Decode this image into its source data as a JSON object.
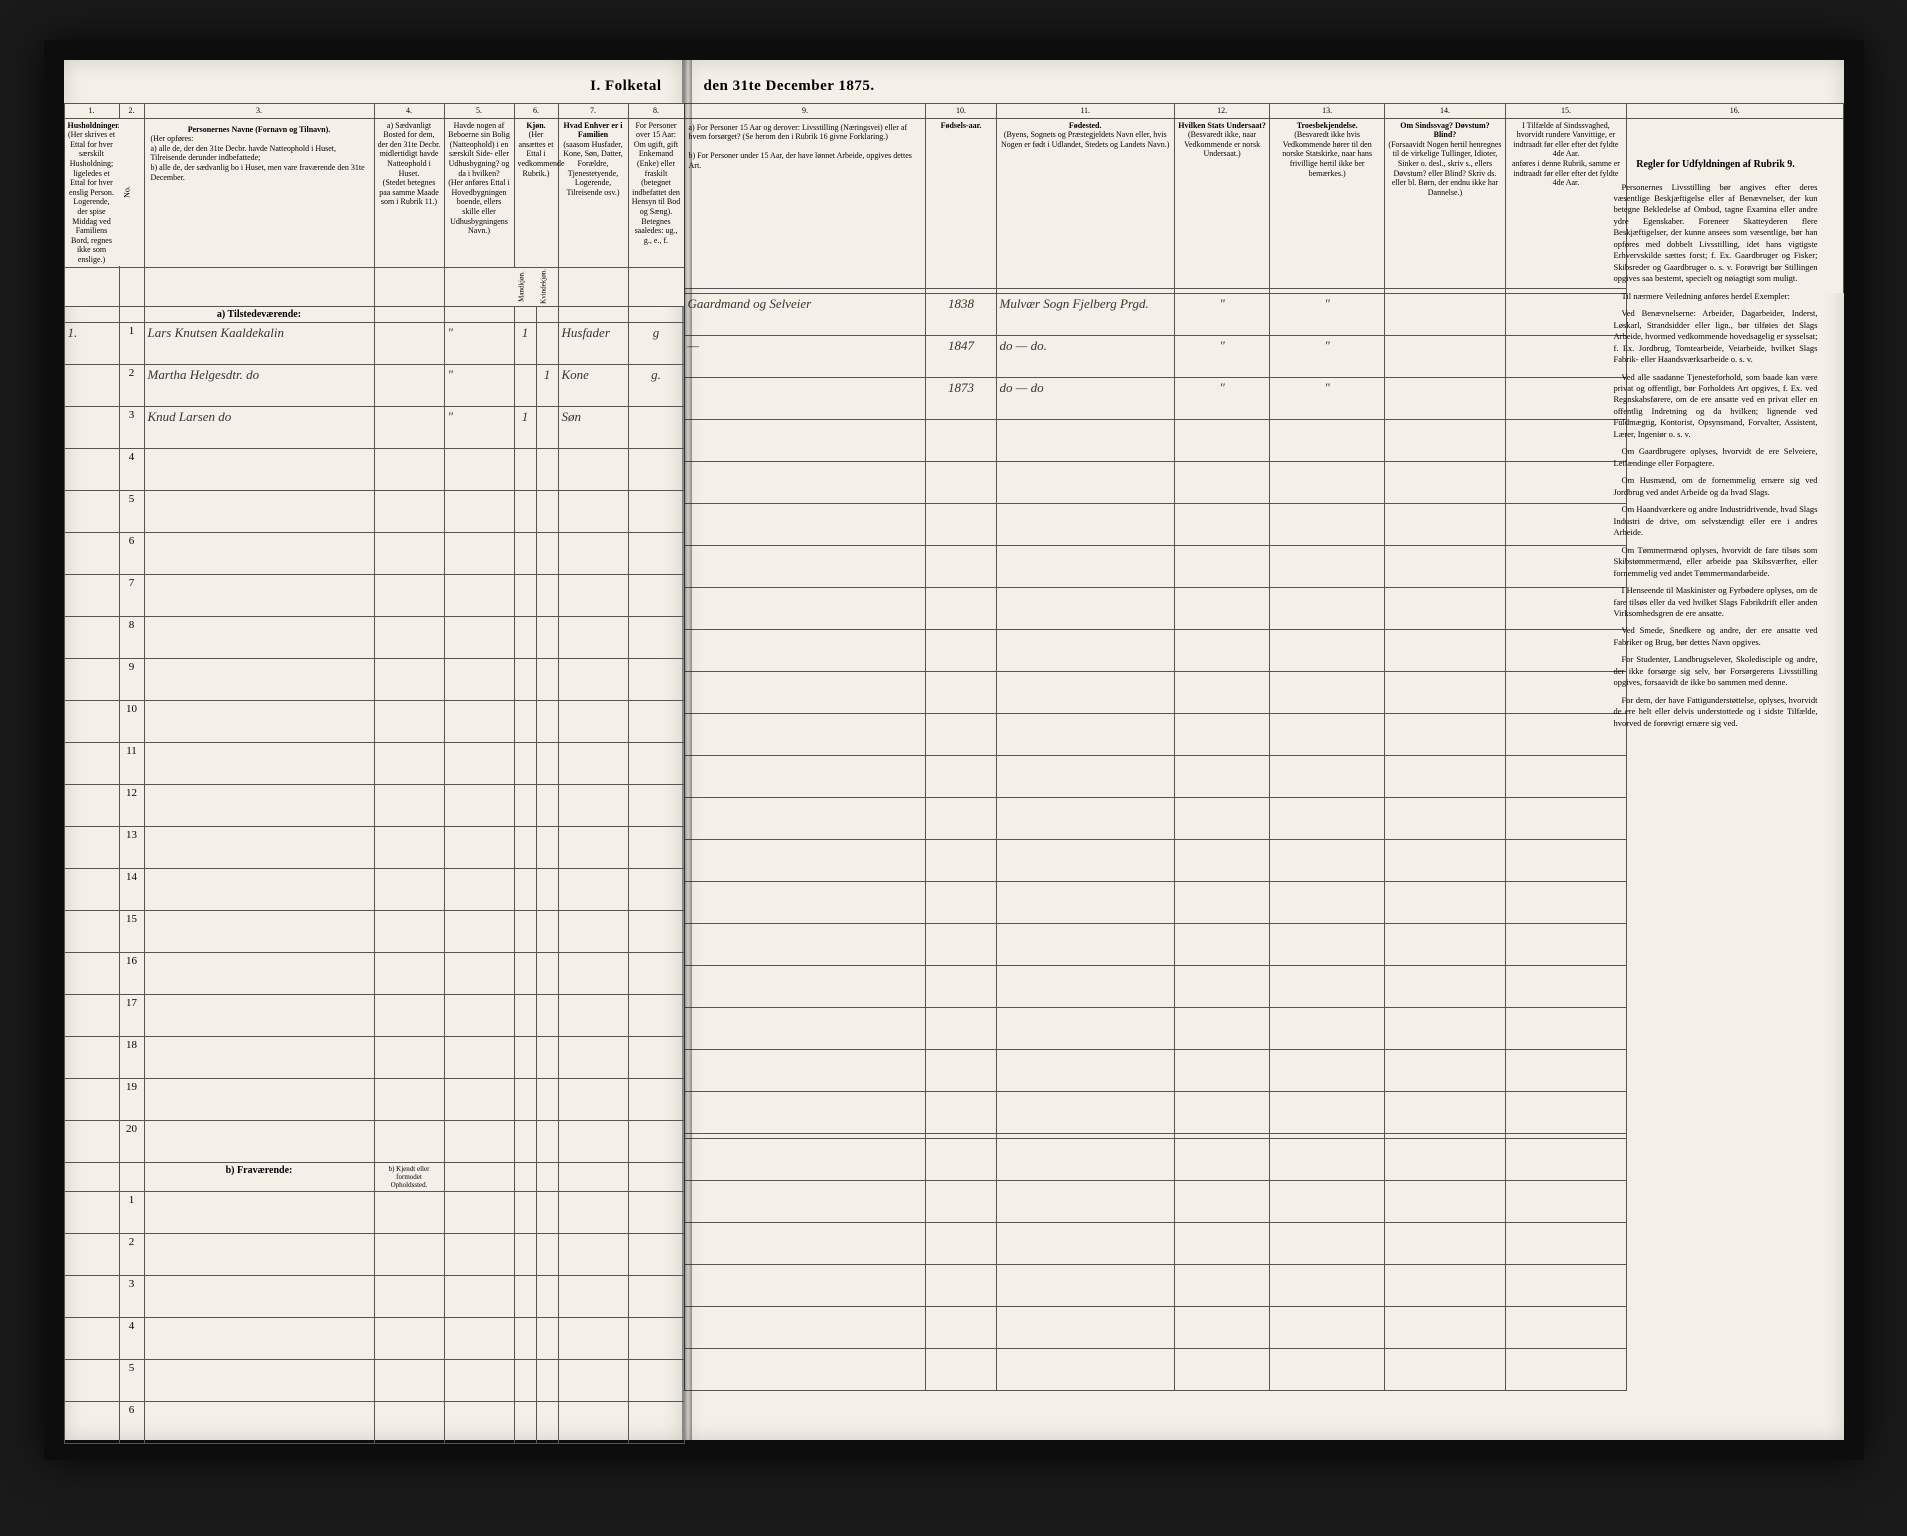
{
  "document": {
    "title_left": "I. Folketal",
    "title_right": "den 31te December 1875.",
    "colors": {
      "page_bg": "#f4f0e8",
      "border": "#555555",
      "ink": "#3a3328",
      "frame": "#1a1a1a"
    }
  },
  "columns_left": {
    "c1": {
      "num": "1.",
      "head": "Husholdninger.",
      "sub": "(Her skrives et Ettal for hver særskilt Husholdning; ligeledes et Ettal for hver enslig Person. Logerende, der spise Middag ved Familiens Bord, regnes ikke som enslige.)"
    },
    "c2": {
      "num": "2.",
      "head": "No."
    },
    "c3": {
      "num": "3.",
      "head": "Personernes Navne (Fornavn og Tilnavn).",
      "sub_a": "(Her opføres:",
      "sub_b": "a) alle de, der den 31te Decbr. havde Natteophold i Huset, Tilreisende derunder indbefattede;",
      "sub_c": "b) alle de, der sædvanlig bo i Huset, men vare fraværende den 31te December."
    },
    "c4": {
      "num": "4.",
      "head": "a) Sædvanligt Bosted for dem, der den 31te Decbr. midlertidigt havde Natteophold i Huset.",
      "sub": "(Stedet betegnes paa samme Maade som i Rubrik 11.)"
    },
    "c5": {
      "num": "5.",
      "head": "Havde nogen af Beboerne sin Bolig (Natteophold) i en særskilt Side- eller Udhusbygning? og da i hvilken?",
      "sub": "(Her anføres Ettal i Hovedbygningen boende, ellers skille eller Udhusbygningens Navn.)"
    },
    "c6": {
      "num": "6.",
      "head": "Kjøn.",
      "sub": "(Her ansættes et Ettal i vedkommende Rubrik.)",
      "m": "Mandkjøn.",
      "k": "Kvindekjøn."
    },
    "c7": {
      "num": "7.",
      "head": "Hvad Enhver er i Familien",
      "sub": "(saasom Husfader, Kone, Søn, Datter, Forældre, Tjenestetyende, Logerende, Tilreisende osv.)"
    },
    "c8": {
      "num": "8.",
      "head": "For Personer over 15 Aar: Om ugift, gift Enkemand (Enke) eller fraskilt (betegnet indbefattet den Hensyn til Bod og Sæng).",
      "sub": "Betegnes saaledes: ug., g., e., f."
    }
  },
  "columns_right": {
    "c9": {
      "num": "9.",
      "head_a": "a) For Personer 15 Aar og derover: Livsstilling (Næringsvei) eller af hvem forsørget? (Se herom den i Rubrik 16 givne Forklaring.)",
      "head_b": "b) For Personer under 15 Aar, der have lønnet Arbeide, opgives dettes Art."
    },
    "c10": {
      "num": "10.",
      "head": "Fødsels-aar."
    },
    "c11": {
      "num": "11.",
      "head": "Fødested.",
      "sub": "(Byens, Sognets og Præstegjeldets Navn eller, hvis Nogen er født i Udlandet, Stedets og Landets Navn.)"
    },
    "c12": {
      "num": "12.",
      "head": "Hvilken Stats Undersaat?",
      "sub": "(Besvaredt ikke, naar Vedkommende er norsk Undersaat.)"
    },
    "c13": {
      "num": "13.",
      "head": "Troesbekjendelse.",
      "sub": "(Besvaredt ikke hvis Vedkommende hører til den norske Statskirke, naar hans frivillige hertil ikke ber bemærkes.)"
    },
    "c14": {
      "num": "14.",
      "head": "Om Sindssvag? Døvstum? Blind?",
      "sub": "(Forsaavidt Nogen hertil henregnes til de virkelige Tullinger, Idioter, Sinker o. desl., skriv s., ellers Døvstum? eller Blind? Skriv ds. eller bl. Børn, der endnu ikke har Dannelse.)"
    },
    "c15": {
      "num": "15.",
      "head": "I Tilfælde af Sindssvaghed, hvorvidt rundere Vanvittige, er indtraadt før eller efter det fyldte 4de Aar.",
      "sub": "anføres i denne Rubrik, samme er indtraadt før eller efter det fyldte 4de Aar."
    },
    "c16": {
      "num": "16.",
      "head": "Regler for Udfyldningen af Rubrik 9."
    }
  },
  "sections": {
    "a": "a)  Tilstedeværende:",
    "b": "b)  Fraværende:",
    "b_col4": "b) Kjendt eller formodet Opholdssted."
  },
  "rows": [
    {
      "n": "1",
      "hh": "1.",
      "name": "Lars Knutsen Kaaldekalin",
      "kjM": "1",
      "kjK": "",
      "fam": "Husfader",
      "stat": "g",
      "liv": "Gaardmand og Selveier",
      "aar": "1838",
      "sted": "Mulvær Sogn Fjelberg Prgd."
    },
    {
      "n": "2",
      "hh": "",
      "name": "Martha Helgesdtr.     do",
      "kjM": "",
      "kjK": "1",
      "fam": "Kone",
      "stat": "g.",
      "liv": "—",
      "aar": "1847",
      "sted": "do — do."
    },
    {
      "n": "3",
      "hh": "",
      "name": "Knud Larsen           do",
      "kjM": "1",
      "kjK": "",
      "fam": "Søn",
      "stat": "",
      "liv": "",
      "aar": "1873",
      "sted": "do — do"
    }
  ],
  "empty_rows_a": [
    "4",
    "5",
    "6",
    "7",
    "8",
    "9",
    "10",
    "11",
    "12",
    "13",
    "14",
    "15",
    "16",
    "17",
    "18",
    "19",
    "20"
  ],
  "empty_rows_b": [
    "1",
    "2",
    "3",
    "4",
    "5",
    "6"
  ],
  "instructions": {
    "title": "Regler for Udfyldningen af Rubrik 9.",
    "paragraphs": [
      "Personernes Livsstilling bør angives efter deres væsentlige Beskjæftigelse eller af Benævnelser, der kun betegne Bekledelse af Ombud, tagne Examina eller andre ydre Egenskaber. Foreneer Skatteyderen flere Beskjæftigelser, der kunne ansees som væsentlige, bør han opføres med dobbelt Livsstilling, idet hans vigtigste Erhvervskilde sættes forst; f. Ex. Gaardbruger og Fisker; Skibsreder og Gaardbruger o. s. v. Forøvrigt bør Stillingen opgives saa bestemt, specielt og nøiagtigt som muligt.",
      "Til nærmere Veiledning anføres herdel Exempler:",
      "Ved Benævnelserne: Arbeider, Dagarbeider, Inderst, Løskarl, Strandsidder eller lign., bør tilføies det Slags Arbeide, hvormed vedkommende hovedsagelig er sysselsat; f. Ex. Jordbrug, Tomtearbeide, Veiarbeide, hvilket Slags Fabrik- eller Haandsværksarbeide o. s. v.",
      "Ved alle saadanne Tjenesteforhold, som baade kan være privat og offentligt, bør Forholdets Art opgives, f. Ex. ved Regnskabsførere, om de ere ansatte ved en privat eller en offentlig Indretning og da hvilken; lignende ved Fuldmægtig, Kontorist, Opsynsmand, Forvalter, Assistent, Lærer, Ingeniør o. s. v.",
      "Om Gaardbrugere oplyses, hvorvidt de ere Selveiere, Leilændinge eller Forpagtere.",
      "Om Husmænd, om de fornemmelig ernære sig ved Jordbrug ved andet Arbeide og da hvad Slags.",
      "Om Haandværkere og andre Industridrivende, hvad Slags Industri de drive, om selvstændigt eller ere i andres Arbeide.",
      "Om Tømmermænd oplyses, hvorvidt de fare tilsøs som Skibstømmermænd, eller arbeide paa Skibsværfter, eller fornemmelig ved andet Tømmermandarbeide.",
      "I Henseende til Maskinister og Fyrbødere oplyses, om de fare tilsøs eller da ved hvilket Slags Fabrikdrift eller anden Virksomhedsgren de ere ansatte.",
      "Ved Smede, Snedkere og andre, der ere ansatte ved Fabriker og Brug, bør dettes Navn opgives.",
      "For Studenter, Landbrugselever, Skoledisciple og andre, der ikke forsørge sig selv, bør Forsørgerens Livsstilling opgives, forsaavidt de ikke bo sammen med denne.",
      "For dem, der have Fattigunderstøttelse, oplyses, hvorvidt de ere helt eller delvis understottede og i sidste Tilfælde, hvorved de forøvrigt ernære sig ved."
    ]
  }
}
